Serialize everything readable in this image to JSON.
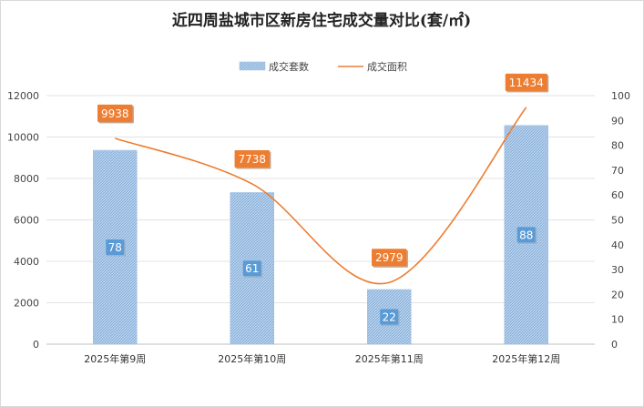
{
  "chart_data": {
    "type": "bar+line",
    "title": "近四周盐城市区新房住宅成交量对比(套/㎡)",
    "categories": [
      "2025年第9周",
      "2025年第10周",
      "2025年第11周",
      "2025年第12周"
    ],
    "series": [
      {
        "name": "成交套数",
        "type": "bar",
        "axis": "right",
        "values": [
          78,
          61,
          22,
          88
        ],
        "color": "#a8c8e8"
      },
      {
        "name": "成交面积",
        "type": "line",
        "axis": "left",
        "values": [
          9938,
          7738,
          2979,
          11434
        ],
        "color": "#ed7d31"
      }
    ],
    "y_left": {
      "min": 0,
      "max": 12000,
      "step": 2000,
      "ticks": [
        "0",
        "2000",
        "4000",
        "6000",
        "8000",
        "10000",
        "12000"
      ]
    },
    "y_right": {
      "min": 0,
      "max": 100,
      "step": 10,
      "ticks": [
        "0",
        "10",
        "20",
        "30",
        "40",
        "50",
        "60",
        "70",
        "80",
        "90",
        "100"
      ]
    },
    "legend_position": "top-center",
    "grid": true,
    "label_colors": {
      "bar_label_bg": "#5b9bd5",
      "line_label_bg": "#ed7d31"
    }
  }
}
